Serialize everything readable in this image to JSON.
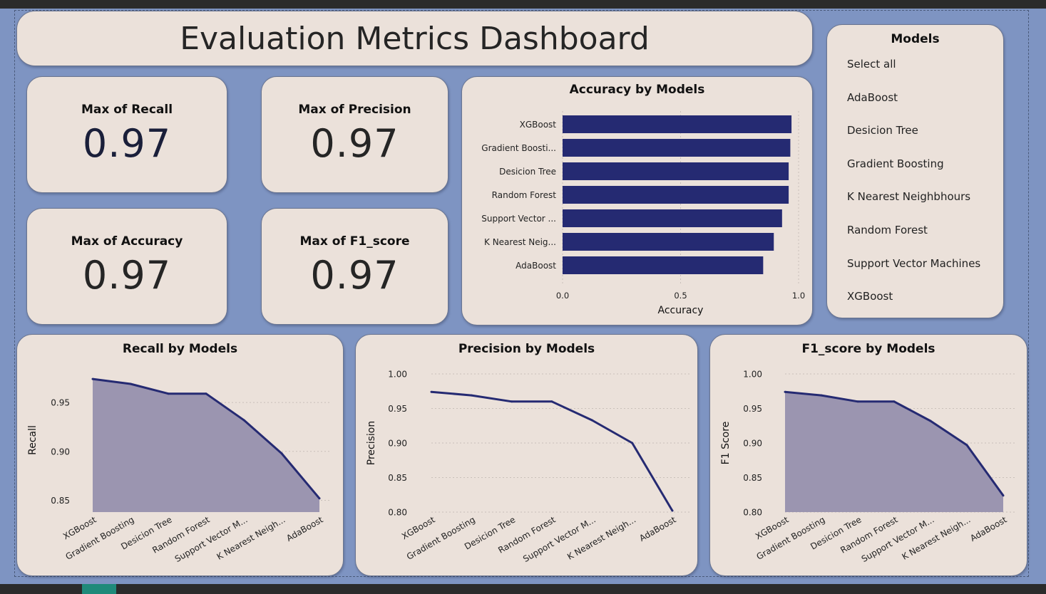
{
  "dashboard": {
    "title": "Evaluation Metrics Dashboard"
  },
  "kpis": {
    "recall": {
      "label": "Max of Recall",
      "value": "0.97"
    },
    "precision": {
      "label": "Max of Precision",
      "value": "0.97"
    },
    "accuracy": {
      "label": "Max of Accuracy",
      "value": "0.97"
    },
    "f1": {
      "label": "Max of F1_score",
      "value": "0.97"
    }
  },
  "slicer": {
    "title": "Models",
    "items": [
      "Select all",
      "AdaBoost",
      "Desicion Tree",
      "Gradient Boosting",
      "K Nearest Neighbhours",
      "Random Forest",
      "Support Vector Machines",
      "XGBoost"
    ]
  },
  "colors": {
    "bar": "#252a72",
    "line": "#252a72",
    "area": "#9b95b0",
    "canvas": "#7e94c2",
    "card": "#ebe1da"
  },
  "chart_data": [
    {
      "id": "accuracy",
      "type": "bar",
      "orientation": "horizontal",
      "title": "Accuracy by Models",
      "xlabel": "Accuracy",
      "ylabel": "",
      "categories": [
        "XGBoost",
        "Gradient Boosti...",
        "Desicion Tree",
        "Random Forest",
        "Support Vector ...",
        "K Nearest Neig...",
        "AdaBoost"
      ],
      "values": [
        0.97,
        0.965,
        0.958,
        0.958,
        0.93,
        0.895,
        0.85
      ],
      "xlim": [
        0,
        1
      ],
      "xticks": [
        "0.0",
        "0.5",
        "1.0"
      ],
      "grid": true
    },
    {
      "id": "recall",
      "type": "area",
      "title": "Recall by Models",
      "xlabel": "",
      "ylabel": "Recall",
      "categories": [
        "XGBoost",
        "Gradient Boosting",
        "Desicion Tree",
        "Random Forest",
        "Support Vector M...",
        "K Nearest Neigh...",
        "AdaBoost"
      ],
      "values": [
        0.974,
        0.969,
        0.959,
        0.959,
        0.932,
        0.898,
        0.852
      ],
      "ylim": [
        0.838,
        0.985
      ],
      "yticks": [
        "0.85",
        "0.90",
        "0.95"
      ],
      "grid": true
    },
    {
      "id": "precision",
      "type": "line",
      "title": "Precision by Models",
      "xlabel": "",
      "ylabel": "Precision",
      "categories": [
        "XGBoost",
        "Gradient Boosting",
        "Desicion Tree",
        "Random Forest",
        "Support Vector M...",
        "K Nearest Neigh...",
        "AdaBoost"
      ],
      "values": [
        0.974,
        0.969,
        0.96,
        0.96,
        0.933,
        0.9,
        0.802
      ],
      "ylim": [
        0.8,
        1.0
      ],
      "yticks": [
        "0.80",
        "0.85",
        "0.90",
        "0.95",
        "1.00"
      ],
      "grid": true
    },
    {
      "id": "f1",
      "type": "area",
      "title": "F1_score by Models",
      "xlabel": "",
      "ylabel": "F1 Score",
      "categories": [
        "XGBoost",
        "Gradient Boosting",
        "Desicion Tree",
        "Random Forest",
        "Support Vector M...",
        "K Nearest Neigh...",
        "AdaBoost"
      ],
      "values": [
        0.974,
        0.969,
        0.96,
        0.96,
        0.932,
        0.897,
        0.824
      ],
      "ylim": [
        0.8,
        1.0
      ],
      "yticks": [
        "0.80",
        "0.85",
        "0.90",
        "0.95",
        "1.00"
      ],
      "grid": true
    }
  ]
}
